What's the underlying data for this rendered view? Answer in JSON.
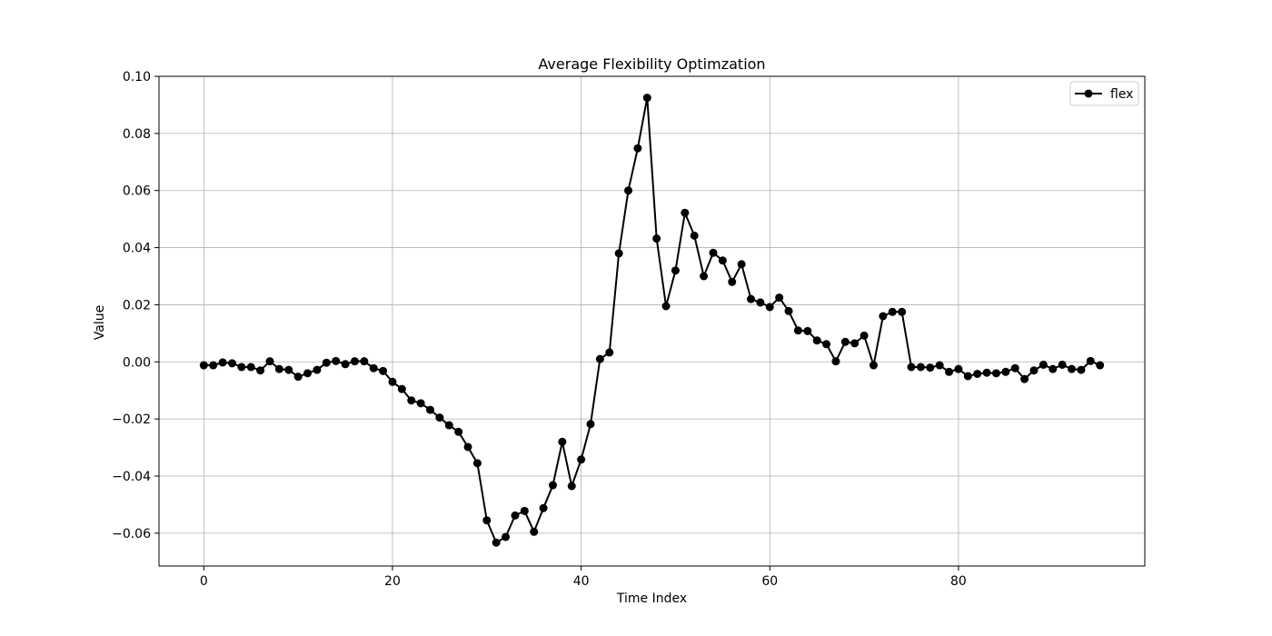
{
  "chart_data": {
    "type": "line",
    "title": "Average Flexibility Optimzation",
    "xlabel": "Time Index",
    "ylabel": "Value",
    "xlim": [
      -4.75,
      99.75
    ],
    "ylim": [
      -0.0715,
      0.1
    ],
    "grid": true,
    "legend": {
      "position": "top-right",
      "entries": [
        "flex"
      ]
    },
    "xticks": [
      0,
      20,
      40,
      60,
      80
    ],
    "xtick_labels": [
      "0",
      "20",
      "40",
      "60",
      "80"
    ],
    "yticks": [
      0.1,
      0.08,
      0.06,
      0.04,
      0.02,
      0.0,
      -0.02,
      -0.04,
      -0.06
    ],
    "ytick_labels": [
      "0.10",
      "0.08",
      "0.06",
      "0.04",
      "0.02",
      "0.00",
      "−0.02",
      "−0.04",
      "−0.06"
    ],
    "series": [
      {
        "name": "flex",
        "color": "#000000",
        "marker": "circle",
        "x": [
          0,
          1,
          2,
          3,
          4,
          5,
          6,
          7,
          8,
          9,
          10,
          11,
          12,
          13,
          14,
          15,
          16,
          17,
          18,
          19,
          20,
          21,
          22,
          23,
          24,
          25,
          26,
          27,
          28,
          29,
          30,
          31,
          32,
          33,
          34,
          35,
          36,
          37,
          38,
          39,
          40,
          41,
          42,
          43,
          44,
          45,
          46,
          47,
          48,
          49,
          50,
          51,
          52,
          53,
          54,
          55,
          56,
          57,
          58,
          59,
          60,
          61,
          62,
          63,
          64,
          65,
          66,
          67,
          68,
          69,
          70,
          71,
          72,
          73,
          74,
          75,
          76,
          77,
          78,
          79,
          80,
          81,
          82,
          83,
          84,
          85,
          86,
          87,
          88,
          89,
          90,
          91,
          92,
          93,
          94,
          95
        ],
        "values": [
          -0.0012,
          -0.0012,
          -0.0002,
          -0.0005,
          -0.0018,
          -0.0018,
          -0.003,
          0.0002,
          -0.0025,
          -0.0028,
          -0.0052,
          -0.004,
          -0.0028,
          -0.0003,
          0.0003,
          -0.0008,
          0.0002,
          0.0002,
          -0.0022,
          -0.0032,
          -0.007,
          -0.0095,
          -0.0135,
          -0.0145,
          -0.0168,
          -0.0195,
          -0.0222,
          -0.0245,
          -0.0298,
          -0.0355,
          -0.0555,
          -0.0633,
          -0.0613,
          -0.0538,
          -0.0522,
          -0.0595,
          -0.0512,
          -0.0432,
          -0.028,
          -0.0435,
          -0.0342,
          -0.0218,
          0.001,
          0.0033,
          0.038,
          0.06,
          0.0748,
          0.0925,
          0.0432,
          0.0195,
          0.032,
          0.0522,
          0.0442,
          0.03,
          0.0382,
          0.0355,
          0.028,
          0.0342,
          0.022,
          0.0208,
          0.0192,
          0.0225,
          0.0178,
          0.011,
          0.0108,
          0.0075,
          0.0062,
          0.0002,
          0.007,
          0.0065,
          0.0092,
          -0.0012,
          0.016,
          0.0175,
          0.0175,
          -0.0018,
          -0.0018,
          -0.002,
          -0.0012,
          -0.0035,
          -0.0025,
          -0.005,
          -0.0042,
          -0.0038,
          -0.004,
          -0.0035,
          -0.0022,
          -0.006,
          -0.003,
          -0.001,
          -0.0025,
          -0.001,
          -0.0025,
          -0.0028,
          0.0003,
          -0.0012
        ]
      }
    ]
  }
}
